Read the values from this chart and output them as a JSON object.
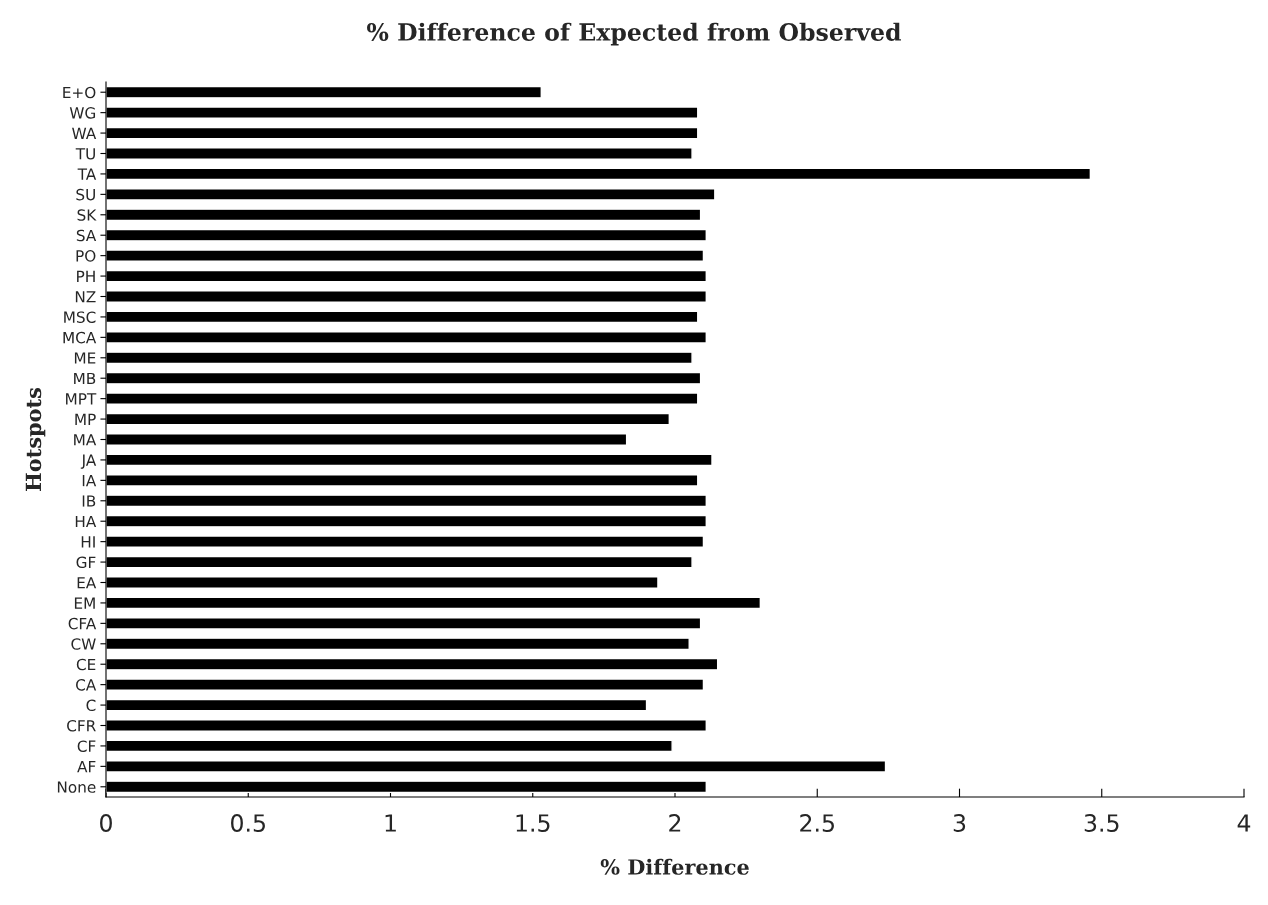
{
  "chart_data": {
    "type": "bar",
    "orientation": "horizontal",
    "title": "% Difference of Expected from Observed",
    "xlabel": "% Difference",
    "ylabel": "Hotspots",
    "categories": [
      "E+O",
      "WG",
      "WA",
      "TU",
      "TA",
      "SU",
      "SK",
      "SA",
      "PO",
      "PH",
      "NZ",
      "MSC",
      "MCA",
      "ME",
      "MB",
      "MPT",
      "MP",
      "MA",
      "JA",
      "IA",
      "IB",
      "HA",
      "HI",
      "GF",
      "EA",
      "EM",
      "CFA",
      "CW",
      "CE",
      "CA",
      "C",
      "CFR",
      "CF",
      "AF",
      "None"
    ],
    "values": [
      1.53,
      2.08,
      2.08,
      2.06,
      3.46,
      2.14,
      2.09,
      2.11,
      2.1,
      2.11,
      2.11,
      2.08,
      2.11,
      2.06,
      2.09,
      2.08,
      1.98,
      1.83,
      2.13,
      2.08,
      2.11,
      2.11,
      2.1,
      2.06,
      1.94,
      2.3,
      2.09,
      2.05,
      2.15,
      2.1,
      1.9,
      2.11,
      1.99,
      2.74,
      2.11
    ],
    "color": "#000000",
    "xlim": [
      0,
      4
    ],
    "xticks": [
      0,
      0.5,
      1,
      1.5,
      2,
      2.5,
      3,
      3.5,
      4
    ],
    "grid": false,
    "legend": false
  }
}
